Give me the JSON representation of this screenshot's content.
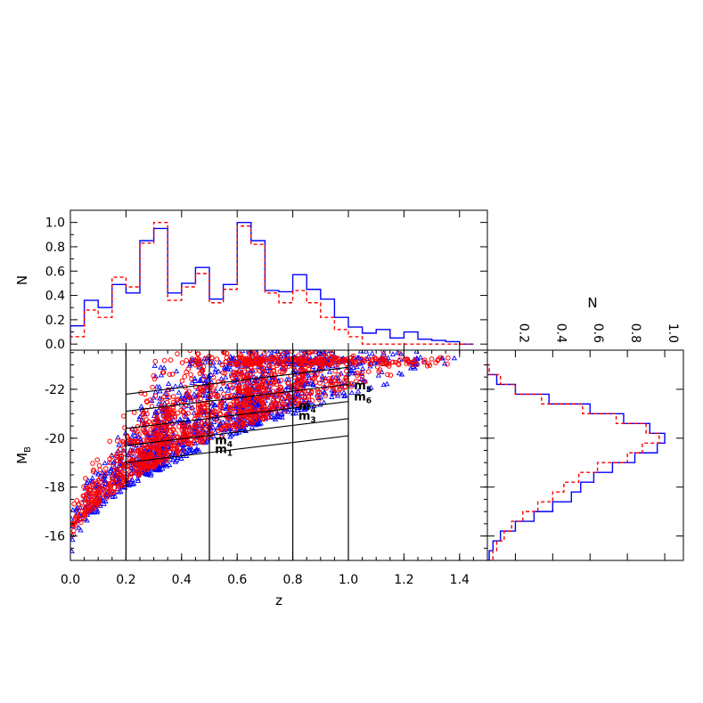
{
  "chart_data": [
    {
      "type": "step-histogram",
      "panel": "top",
      "xlim": [
        0.0,
        1.5
      ],
      "ylim": [
        -0.05,
        1.1
      ],
      "ylabel": "N",
      "yticks": [
        "0.0",
        "0.2",
        "0.4",
        "0.6",
        "0.8",
        "1.0"
      ],
      "bin_edges": [
        0.0,
        0.05,
        0.1,
        0.15,
        0.2,
        0.25,
        0.3,
        0.35,
        0.4,
        0.45,
        0.5,
        0.55,
        0.6,
        0.65,
        0.7,
        0.75,
        0.8,
        0.85,
        0.9,
        0.95,
        1.0,
        1.05,
        1.1,
        1.15,
        1.2,
        1.25,
        1.3,
        1.35,
        1.4,
        1.45
      ],
      "series": [
        {
          "color": "#0000ff",
          "dash": "solid",
          "values": [
            0.15,
            0.36,
            0.3,
            0.49,
            0.42,
            0.85,
            0.95,
            0.42,
            0.5,
            0.63,
            0.37,
            0.49,
            1.0,
            0.85,
            0.44,
            0.43,
            0.57,
            0.45,
            0.37,
            0.22,
            0.14,
            0.09,
            0.12,
            0.05,
            0.1,
            0.04,
            0.03,
            0.02,
            0.0
          ]
        },
        {
          "color": "#ff0000",
          "dash": "dashed",
          "values": [
            0.06,
            0.28,
            0.22,
            0.55,
            0.47,
            0.83,
            1.0,
            0.36,
            0.47,
            0.58,
            0.34,
            0.45,
            0.97,
            0.82,
            0.42,
            0.34,
            0.44,
            0.34,
            0.22,
            0.12,
            0.06,
            0.0,
            0.0,
            0.0,
            0.0,
            0.0,
            0.0,
            0.0,
            0.0
          ]
        }
      ]
    },
    {
      "type": "scatter",
      "panel": "main",
      "xlabel": "z",
      "ylabel": "M_B",
      "ylabel_main": "M",
      "ylabel_sub": "B",
      "xlim": [
        0.0,
        1.5
      ],
      "ylim": [
        -15.0,
        -23.6
      ],
      "xticks": [
        "0.0",
        "0.2",
        "0.4",
        "0.6",
        "0.8",
        "1.0",
        "1.2",
        "1.4"
      ],
      "yticks": [
        "-22",
        "-20",
        "-18",
        "-16"
      ],
      "series": [
        {
          "marker": "triangle",
          "color": "#0000ff",
          "count": 1400
        },
        {
          "marker": "circle",
          "color": "#ff0000",
          "count": 1400
        }
      ],
      "bin_edges_z": [
        0.2,
        0.5,
        0.8,
        1.0
      ],
      "bin_lines_mag": [
        -19.0,
        -19.7,
        -20.4,
        -21.1,
        -21.8
      ],
      "annotations": [
        {
          "text": "m",
          "subscript": "1",
          "z": 0.52,
          "mag": -19.4
        },
        {
          "text": "m",
          "subscript": "4",
          "z": 0.52,
          "mag": -19.75
        },
        {
          "text": "m",
          "subscript": "3",
          "z": 0.82,
          "mag": -20.75
        },
        {
          "text": "m",
          "subscript": "4",
          "z": 0.82,
          "mag": -21.15
        },
        {
          "text": "m",
          "subscript": "6",
          "z": 1.02,
          "mag": -21.55
        },
        {
          "text": "m",
          "subscript": "5",
          "z": 1.02,
          "mag": -22.0
        }
      ]
    },
    {
      "type": "step-histogram",
      "panel": "right",
      "orientation": "horizontal",
      "xlabel": "N",
      "xlim": [
        0.05,
        1.1
      ],
      "xticks": [
        "0.2",
        "0.4",
        "0.6",
        "0.8",
        "1.0"
      ],
      "bin_edges_mag": [
        -15.0,
        -15.4,
        -15.8,
        -16.2,
        -16.6,
        -17.0,
        -17.4,
        -17.8,
        -18.2,
        -18.6,
        -19.0,
        -19.4,
        -19.8,
        -20.2,
        -20.6,
        -21.0,
        -21.4,
        -21.8,
        -22.2,
        -22.6,
        -23.0,
        -23.4
      ],
      "series": [
        {
          "color": "#0000ff",
          "dash": "solid",
          "values": [
            0.06,
            0.08,
            0.12,
            0.2,
            0.3,
            0.4,
            0.5,
            0.55,
            0.62,
            0.72,
            0.84,
            0.96,
            1.0,
            0.92,
            0.78,
            0.6,
            0.38,
            0.2,
            0.1,
            0.05,
            0.02
          ]
        },
        {
          "color": "#ff0000",
          "dash": "dashed",
          "values": [
            0.08,
            0.1,
            0.14,
            0.18,
            0.24,
            0.32,
            0.4,
            0.46,
            0.54,
            0.64,
            0.8,
            0.88,
            0.97,
            0.9,
            0.74,
            0.56,
            0.34,
            0.2,
            0.12,
            0.06,
            0.02
          ]
        }
      ]
    }
  ]
}
